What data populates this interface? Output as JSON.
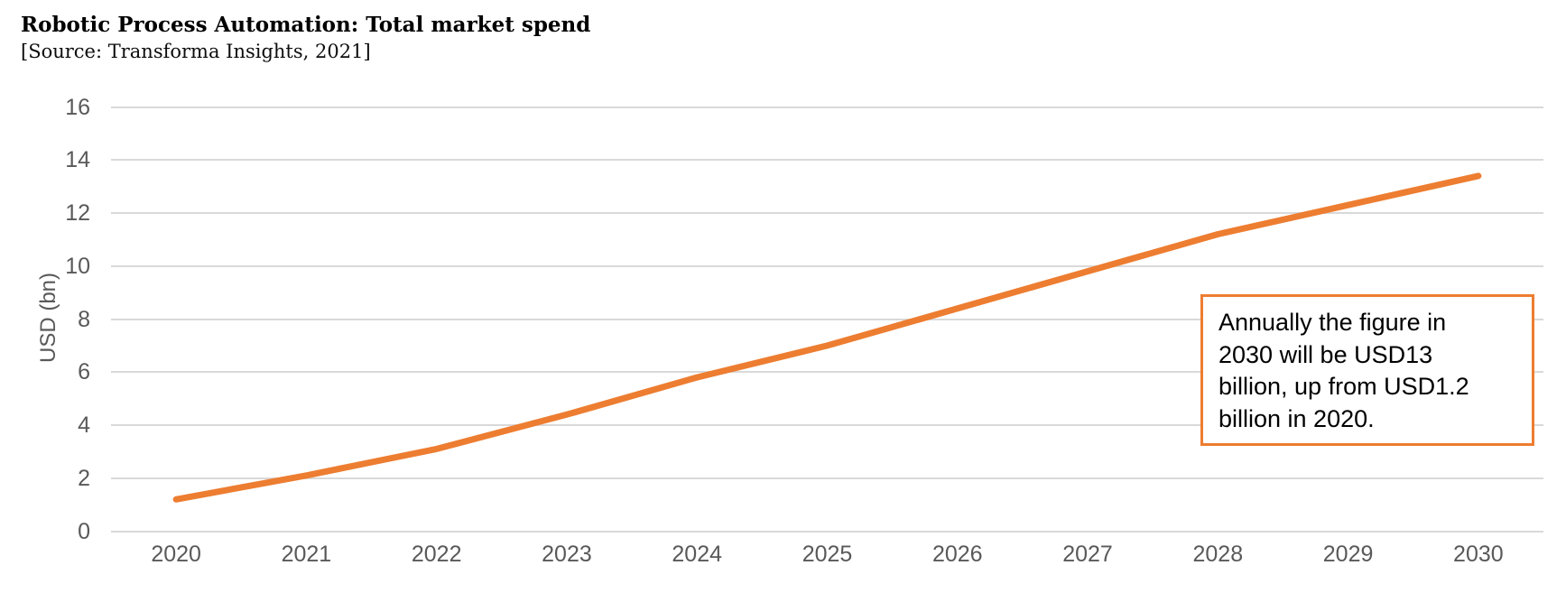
{
  "chart_data": {
    "type": "line",
    "title": "Robotic Process Automation: Total market spend",
    "subtitle": "[Source: Transforma Insights, 2021]",
    "x": [
      "2020",
      "2021",
      "2022",
      "2023",
      "2024",
      "2025",
      "2026",
      "2027",
      "2028",
      "2029",
      "2030"
    ],
    "series": [
      {
        "name": "Total market spend",
        "values": [
          1.2,
          2.1,
          3.1,
          4.4,
          5.8,
          7.0,
          8.4,
          9.8,
          11.2,
          12.3,
          13.4
        ],
        "color": "#ED7D31"
      }
    ],
    "xlabel": "",
    "ylabel": "USD (bn)",
    "ylim": [
      0,
      16
    ],
    "ytick_step": 2,
    "grid": true,
    "legend": false,
    "colors": {
      "line": "#ED7D31",
      "gridline": "#d9d9d9",
      "tick_label": "#595959",
      "annotation_border": "#ED7D31"
    },
    "annotation": {
      "text": "Annually the figure in 2030 will be USD13 billion, up from USD1.2 billion in 2020.",
      "lines": [
        "Annually the figure in",
        "2030 will be USD13",
        "billion, up from USD1.2",
        "billion in 2020."
      ]
    }
  }
}
